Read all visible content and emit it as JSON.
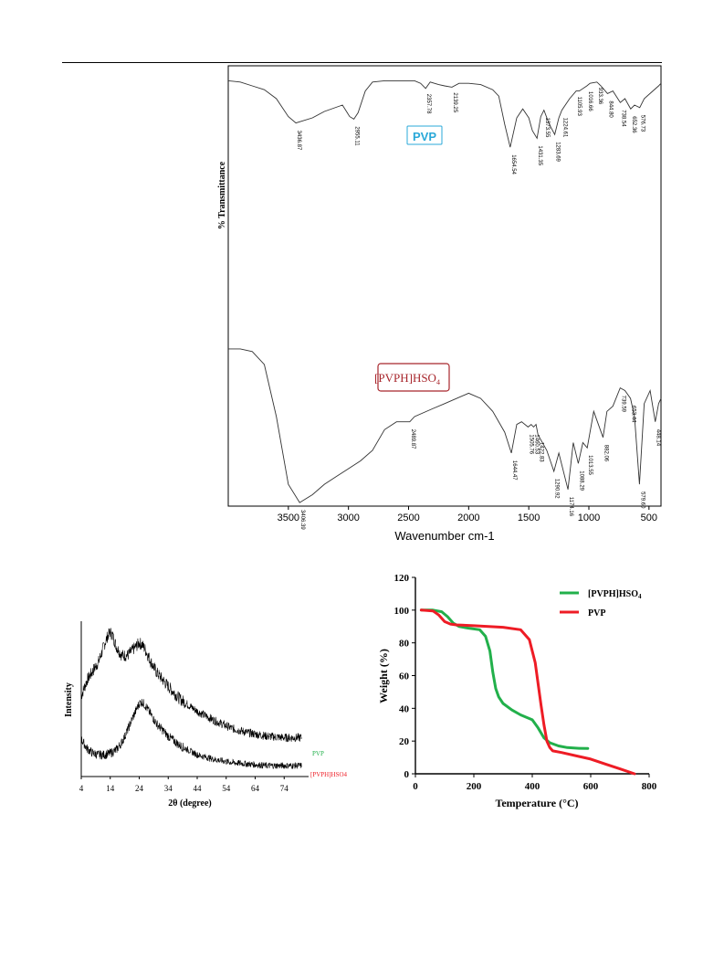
{
  "colors": {
    "pvp_label": "#29a8d8",
    "hso4_label": "#a8262c",
    "tga_green": "#22b04b",
    "tga_red": "#ee1c25",
    "xrd_pvp_label": "#22b04b",
    "xrd_hso4_label": "#ee1c25"
  },
  "chart_data": [
    {
      "type": "line",
      "ylabel": "% Transmittance",
      "xlabel": "Wavenumber cm-1",
      "xlim": [
        4000,
        400
      ],
      "x_reversed": true,
      "xticks": [
        3500,
        3000,
        2500,
        2000,
        1500,
        1000,
        500
      ],
      "grid": false,
      "series": [
        {
          "name": "PVP",
          "x": [
            4000,
            3900,
            3800,
            3700,
            3600,
            3500,
            3436.87,
            3300,
            3200,
            3050,
            2990,
            2955.11,
            2920,
            2860,
            2800,
            2700,
            2600,
            2450,
            2400,
            2357.78,
            2320,
            2250,
            2200,
            2139.25,
            2080,
            2000,
            1900,
            1800,
            1750,
            1700,
            1654.54,
            1600,
            1550,
            1500,
            1470,
            1431.35,
            1400,
            1373.55,
            1330,
            1283.69,
            1250,
            1224.61,
            1160,
            1105.93,
            1080,
            1016.66,
            990,
            933.36,
            900,
            844.8,
            800,
            738.54,
            700,
            652.36,
            620,
            576.73,
            540,
            480,
            420,
            400
          ],
          "y": [
            94,
            93,
            90,
            87,
            80,
            66,
            61,
            65,
            70,
            75,
            66,
            64,
            69,
            86,
            93,
            94,
            94,
            94,
            92,
            88,
            93,
            91,
            90,
            89,
            92,
            92,
            91,
            87,
            82,
            60,
            42,
            65,
            72,
            65,
            55,
            49,
            66,
            71,
            60,
            52,
            65,
            71,
            80,
            86,
            86,
            90,
            92,
            93,
            90,
            84,
            86,
            77,
            80,
            72,
            75,
            73,
            80,
            85,
            90,
            92
          ]
        },
        {
          "name": "[PVPH]HSO4",
          "x": [
            4000,
            3900,
            3800,
            3700,
            3600,
            3500,
            3406.39,
            3300,
            3200,
            3100,
            3000,
            2900,
            2800,
            2700,
            2600,
            2550,
            2489.87,
            2450,
            2300,
            2200,
            2100,
            2000,
            1900,
            1800,
            1700,
            1644.47,
            1600,
            1560,
            1505.76,
            1480,
            1460.53,
            1440,
            1422.83,
            1350,
            1290.92,
            1250,
            1174.16,
            1130,
            1088.29,
            1050,
            1013.55,
            960,
            882.06,
            850,
            800,
            739.59,
            700,
            653.44,
            620,
            579.6,
            540,
            490,
            448.14,
            420,
            400
          ],
          "y": [
            66,
            66,
            65,
            60,
            40,
            14,
            7,
            10,
            14,
            17,
            20,
            23,
            27,
            35,
            38,
            38,
            38,
            40,
            43,
            45,
            47,
            49,
            47,
            42,
            34,
            26,
            37,
            38,
            36,
            37,
            36,
            37,
            33,
            27,
            19,
            26,
            12,
            30,
            22,
            30,
            28,
            42,
            32,
            42,
            44,
            51,
            50,
            47,
            40,
            14,
            45,
            50,
            38,
            45,
            47
          ]
        }
      ],
      "annotations": [
        "3436.87",
        "2955.11",
        "2357.78",
        "2139.25",
        "1654.54",
        "1431.35",
        "1373.55",
        "1283.69",
        "1224.61",
        "1105.93",
        "1016.66",
        "933.36",
        "844.80",
        "738.54",
        "652.36",
        "576.73",
        "3406.39",
        "2489.87",
        "1644.47",
        "1505.76",
        "1460.53",
        "1422.83",
        "1290.92",
        "1174.16",
        "1088.29",
        "1013.55",
        "882.06",
        "739.59",
        "653.44",
        "579.60",
        "448.14"
      ],
      "legend": [
        "PVP",
        "[PVPH]HSO4"
      ]
    },
    {
      "type": "line",
      "xlabel": "2θ (degree)",
      "ylabel": "Intensity",
      "xlim": [
        4,
        84
      ],
      "xticks": [
        4,
        14,
        24,
        34,
        44,
        54,
        64,
        74
      ],
      "series": [
        {
          "name": "PVP",
          "x": [
            4,
            6,
            8,
            10,
            12,
            13,
            14,
            15,
            16,
            18,
            20,
            22,
            24,
            25,
            26,
            28,
            30,
            34,
            38,
            44,
            50,
            56,
            62,
            68,
            74,
            78,
            80
          ],
          "y": [
            52,
            62,
            68,
            74,
            85,
            90,
            93,
            90,
            84,
            78,
            78,
            82,
            86,
            85,
            82,
            74,
            67,
            58,
            50,
            42,
            36,
            31,
            28,
            26,
            25,
            25,
            25
          ]
        },
        {
          "name": "[PVPH]HSO4",
          "x": [
            4,
            6,
            8,
            10,
            12,
            14,
            16,
            18,
            20,
            22,
            24,
            25,
            26,
            28,
            30,
            34,
            38,
            44,
            50,
            56,
            62,
            68,
            74,
            78,
            80
          ],
          "y": [
            24,
            18,
            15,
            14,
            14,
            15,
            17,
            22,
            30,
            39,
            47,
            48,
            46,
            40,
            34,
            26,
            20,
            14,
            11,
            9,
            8,
            7,
            7,
            7,
            7
          ]
        }
      ],
      "legend": [
        "PVP",
        "[PVPH]HSO4"
      ]
    },
    {
      "type": "line",
      "xlabel": "Temperature (°C)",
      "ylabel": "Weight (%)",
      "xlim": [
        0,
        800
      ],
      "ylim": [
        0,
        120
      ],
      "xticks": [
        0,
        200,
        400,
        600,
        800
      ],
      "yticks": [
        0,
        20,
        40,
        60,
        80,
        100,
        120
      ],
      "legend_position": "top-right",
      "series": [
        {
          "name": "[PVPH]HSO4",
          "x": [
            20,
            60,
            90,
            110,
            130,
            150,
            180,
            220,
            240,
            255,
            265,
            275,
            285,
            300,
            330,
            360,
            400,
            420,
            440,
            460,
            490,
            520,
            560,
            590
          ],
          "y": [
            100,
            100,
            99,
            96,
            92,
            90,
            89,
            88,
            84,
            75,
            62,
            52,
            47,
            43,
            39,
            36,
            33,
            28,
            22,
            19,
            17,
            16,
            15.6,
            15.5
          ]
        },
        {
          "name": "PVP",
          "x": [
            20,
            60,
            80,
            100,
            120,
            140,
            200,
            300,
            360,
            390,
            410,
            420,
            430,
            440,
            450,
            460,
            470,
            500,
            600,
            650,
            700,
            750
          ],
          "y": [
            100,
            99.5,
            97,
            93,
            91.5,
            91,
            90.5,
            89.5,
            88,
            82,
            68,
            55,
            42,
            30,
            20,
            16,
            14,
            13,
            9,
            6,
            3,
            0
          ]
        }
      ],
      "legend": [
        "[PVPH]HSO4",
        "PVP"
      ]
    }
  ],
  "ftir": {
    "ylabel": "% Transmittance",
    "xlabel": "Wavenumber cm-1",
    "pvp_box": "PVP",
    "hso4_box_main": "[PVPH]HSO",
    "hso4_box_sub": "4"
  },
  "xrd": {
    "xlabel": "2θ (degree)",
    "ylabel": "Intensity",
    "legend_pvp": "PVP",
    "legend_hso4": "[PVPH]HSO4"
  },
  "tga": {
    "xlabel": "Temperature (°C)",
    "ylabel": "Weight (%)",
    "legend_hso4_main": "[PVPH]HSO",
    "legend_hso4_sub": "4",
    "legend_pvp": "PVP"
  }
}
